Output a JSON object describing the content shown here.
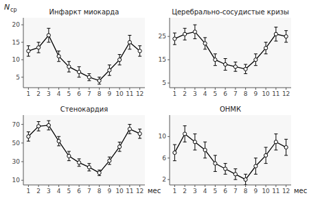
{
  "chart_data": [
    {
      "type": "line",
      "title": "Инфаркт миокарда",
      "x": [
        1,
        2,
        3,
        4,
        5,
        6,
        7,
        8,
        9,
        10,
        11,
        12
      ],
      "values": [
        12.5,
        13.5,
        17.0,
        11.0,
        8.0,
        6.5,
        5.0,
        4.0,
        7.0,
        10.0,
        15.0,
        12.5
      ],
      "errors": [
        1.5,
        1.5,
        2.0,
        1.5,
        1.5,
        1.5,
        1.0,
        1.0,
        1.5,
        1.5,
        2.0,
        1.5
      ],
      "xlim": [
        0.5,
        12.5
      ],
      "xticks": [
        1,
        2,
        3,
        4,
        5,
        6,
        7,
        8,
        9,
        10,
        11,
        12
      ],
      "ylim": [
        2,
        22
      ],
      "yticks": [
        5,
        10,
        15,
        20
      ],
      "color": "#000000",
      "marker": "circle",
      "grid": false,
      "annotations": [
        "N",
        "ср"
      ]
    },
    {
      "type": "line",
      "title": "Церебрально-сосудистые кризы",
      "x": [
        1,
        2,
        3,
        4,
        5,
        6,
        7,
        8,
        9,
        10,
        11,
        12
      ],
      "values": [
        24.0,
        26.0,
        27.0,
        22.0,
        15.0,
        13.0,
        12.0,
        11.0,
        15.0,
        20.0,
        26.0,
        25.0
      ],
      "errors": [
        2.5,
        2.5,
        3.0,
        2.5,
        2.5,
        2.5,
        2.0,
        2.0,
        2.5,
        2.5,
        3.0,
        2.5
      ],
      "xlim": [
        0.5,
        12.5
      ],
      "xticks": [
        1,
        2,
        3,
        4,
        5,
        6,
        7,
        8,
        9,
        10,
        11,
        12
      ],
      "ylim": [
        3,
        33
      ],
      "yticks": [
        5,
        15,
        25
      ],
      "color": "#000000",
      "marker": "circle",
      "grid": false
    },
    {
      "type": "line",
      "title": "Стенокардия",
      "x": [
        1,
        2,
        3,
        4,
        5,
        6,
        7,
        8,
        9,
        10,
        11,
        12
      ],
      "values": [
        57.0,
        68.0,
        69.0,
        52.0,
        36.0,
        29.0,
        24.0,
        18.0,
        31.0,
        46.0,
        65.0,
        60.0
      ],
      "errors": [
        5.0,
        5.0,
        5.0,
        5.0,
        5.0,
        4.0,
        4.0,
        3.0,
        4.0,
        5.0,
        5.0,
        5.0
      ],
      "xlim": [
        0.5,
        12.5
      ],
      "xticks": [
        1,
        2,
        3,
        4,
        5,
        6,
        7,
        8,
        9,
        10,
        11,
        12
      ],
      "ylim": [
        5,
        80
      ],
      "yticks": [
        10,
        30,
        50,
        70
      ],
      "color": "#000000",
      "marker": "circle",
      "grid": false,
      "xlabel": "мес"
    },
    {
      "type": "line",
      "title": "ОНМК",
      "x": [
        1,
        2,
        3,
        4,
        5,
        6,
        7,
        8,
        9,
        10,
        11,
        12
      ],
      "values": [
        7.0,
        10.5,
        9.0,
        7.5,
        5.0,
        4.0,
        3.0,
        2.0,
        4.5,
        6.5,
        9.0,
        8.0
      ],
      "errors": [
        1.5,
        1.5,
        1.5,
        1.5,
        1.5,
        1.0,
        1.0,
        1.0,
        1.5,
        1.5,
        1.5,
        1.5
      ],
      "xlim": [
        0.5,
        12.5
      ],
      "xticks": [
        1,
        2,
        3,
        4,
        5,
        6,
        7,
        8,
        9,
        10,
        11,
        12
      ],
      "ylim": [
        1,
        14
      ],
      "yticks": [
        2,
        6,
        10
      ],
      "color": "#000000",
      "marker": "circle",
      "grid": false,
      "xlabel": "мес"
    }
  ]
}
